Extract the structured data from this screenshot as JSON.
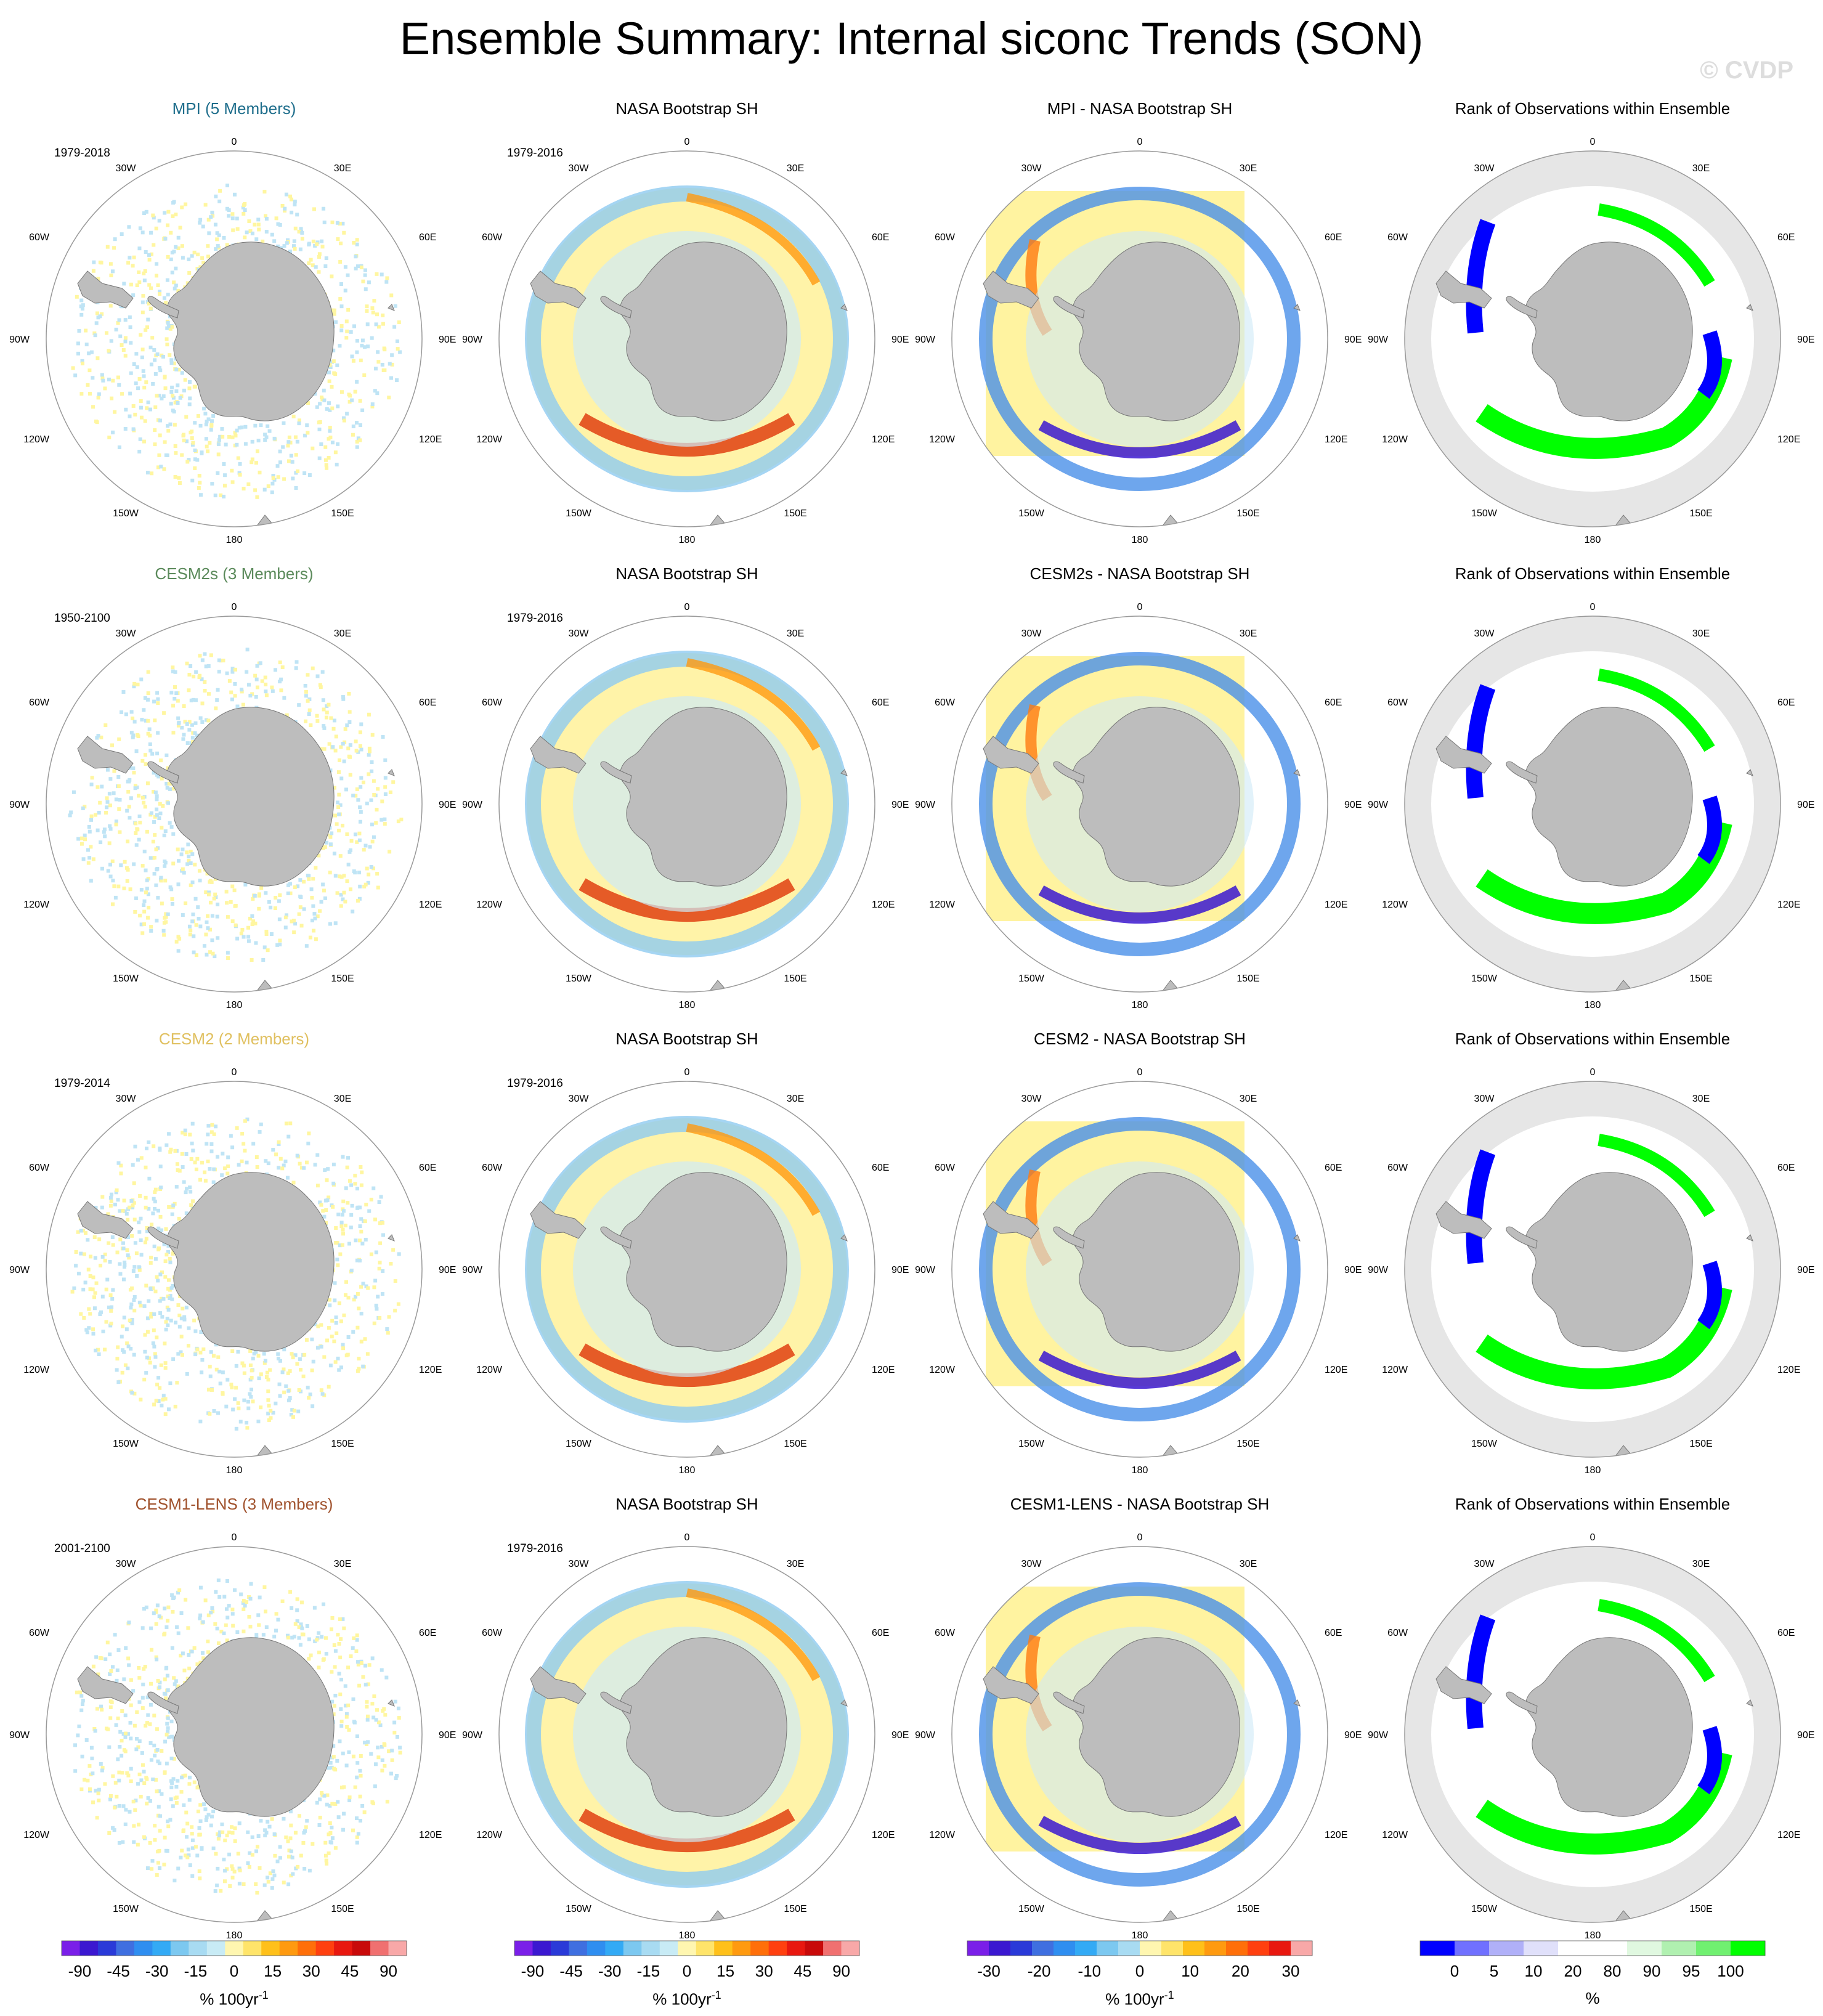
{
  "title": "Ensemble Summary: Internal siconc Trends (SON)",
  "watermark": "© CVDP",
  "longitude_labels": {
    "top": "0",
    "bottom": "180",
    "l1": "30W",
    "l2": "60W",
    "l3": "90W",
    "l4": "120W",
    "l5": "150W",
    "r1": "30E",
    "r2": "60E",
    "r3": "90E",
    "r4": "120E",
    "r5": "150E"
  },
  "rows": [
    {
      "model": {
        "title": "MPI (5 Members)",
        "color": "#1f6e8c",
        "period": "1979-2018"
      },
      "obs": {
        "title": "NASA Bootstrap SH",
        "period": "1979-2016"
      },
      "diff": {
        "title": "MPI - NASA Bootstrap SH"
      },
      "rank": {
        "title": "Rank of Observations within Ensemble"
      }
    },
    {
      "model": {
        "title": "CESM2s (3 Members)",
        "color": "#5b8a5b",
        "period": "1950-2100"
      },
      "obs": {
        "title": "NASA Bootstrap SH",
        "period": "1979-2016"
      },
      "diff": {
        "title": "CESM2s - NASA Bootstrap SH"
      },
      "rank": {
        "title": "Rank of Observations within Ensemble"
      }
    },
    {
      "model": {
        "title": "CESM2 (2 Members)",
        "color": "#e0c060",
        "period": "1979-2014"
      },
      "obs": {
        "title": "NASA Bootstrap SH",
        "period": "1979-2016"
      },
      "diff": {
        "title": "CESM2 - NASA Bootstrap SH"
      },
      "rank": {
        "title": "Rank of Observations within Ensemble"
      }
    },
    {
      "model": {
        "title": "CESM1-LENS (3 Members)",
        "color": "#a0522d",
        "period": "2001-2100"
      },
      "obs": {
        "title": "NASA Bootstrap SH",
        "period": "1979-2016"
      },
      "diff": {
        "title": "CESM1-LENS - NASA Bootstrap SH"
      },
      "rank": {
        "title": "Rank of Observations within Ensemble"
      }
    }
  ],
  "colorbars": {
    "trend": {
      "colors": [
        "#7a1fe8",
        "#3b18d0",
        "#2a3ad8",
        "#3f6fe0",
        "#2f8ef0",
        "#33aaf5",
        "#7cc8f0",
        "#a8dbf2",
        "#c8ebf5",
        "#fff6b0",
        "#ffe46a",
        "#ffc01a",
        "#ff9a10",
        "#ff6f0a",
        "#ff4010",
        "#e81810",
        "#c80a0a",
        "#f07070",
        "#f8a8a8"
      ],
      "ticks": [
        "-90",
        "-45",
        "-30",
        "-15",
        "0",
        "15",
        "30",
        "45",
        "90"
      ],
      "units": "% 100yr",
      "units_sup": "-1"
    },
    "diff": {
      "colors": [
        "#7a1fe8",
        "#3b18d0",
        "#2a3ad8",
        "#3f6fe0",
        "#2f8ef0",
        "#33aaf5",
        "#7cc8f0",
        "#a8dbf2",
        "#fff6b0",
        "#ffe46a",
        "#ffc01a",
        "#ff9a10",
        "#ff6f0a",
        "#ff4010",
        "#e81810",
        "#f8a8a8"
      ],
      "ticks": [
        "-30",
        "-20",
        "-10",
        "0",
        "10",
        "20",
        "30"
      ],
      "units": "% 100yr",
      "units_sup": "-1"
    },
    "rank": {
      "colors": [
        "#0000ff",
        "#7070ff",
        "#b0b0f8",
        "#e0e0fa",
        "#ffffff",
        "#ffffff",
        "#e0f8e0",
        "#b0f0b0",
        "#70f070",
        "#00ff00"
      ],
      "ticks": [
        "0",
        "5",
        "10",
        "20",
        "80",
        "90",
        "95",
        "100"
      ],
      "units": "%"
    }
  },
  "map_colors": {
    "land": "#bdbdbd",
    "ocean_rank": "#e6e6e6",
    "rank_low": "#0000ff",
    "rank_high": "#00ff00",
    "pos": "#fff6a0",
    "neg": "#bfe4f5"
  }
}
